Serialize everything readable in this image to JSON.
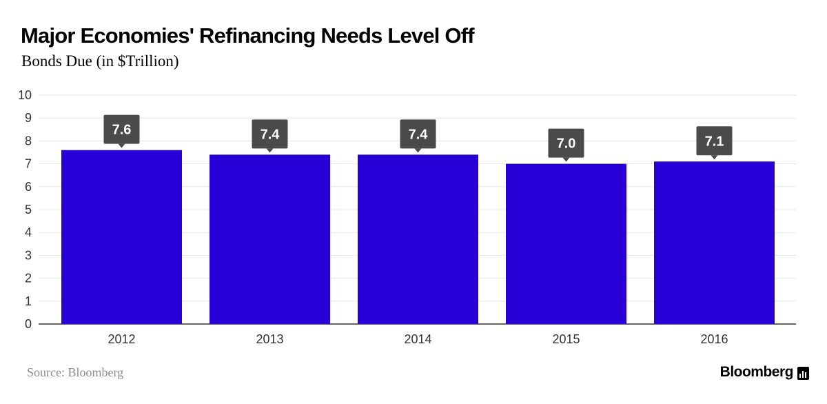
{
  "title": "Major Economies' Refinancing Needs Level Off",
  "subtitle": "Bonds Due (in $Trillion)",
  "source": "Source: Bloomberg",
  "brand": "Bloomberg",
  "brand_icon": "bloomberg-terminal-icon",
  "colors": {
    "bar": "#2800d7",
    "label_bg": "#4a4a4a",
    "label_text": "#ffffff",
    "grid": "#e6e6e6",
    "axis": "#333333",
    "tick_text": "#333333"
  },
  "chart_data": {
    "type": "bar",
    "categories": [
      "2012",
      "2013",
      "2014",
      "2015",
      "2016"
    ],
    "values": [
      7.6,
      7.4,
      7.4,
      7.0,
      7.1
    ],
    "value_labels": [
      "7.6",
      "7.4",
      "7.4",
      "7.0",
      "7.1"
    ],
    "title": "Major Economies' Refinancing Needs Level Off",
    "subtitle": "Bonds Due (in $Trillion)",
    "xlabel": "",
    "ylabel": "",
    "ylim": [
      0,
      10
    ],
    "yticks": [
      "0",
      "1",
      "2",
      "3",
      "4",
      "5",
      "6",
      "7",
      "8",
      "9",
      "10"
    ],
    "grid": true,
    "legend": "none"
  }
}
